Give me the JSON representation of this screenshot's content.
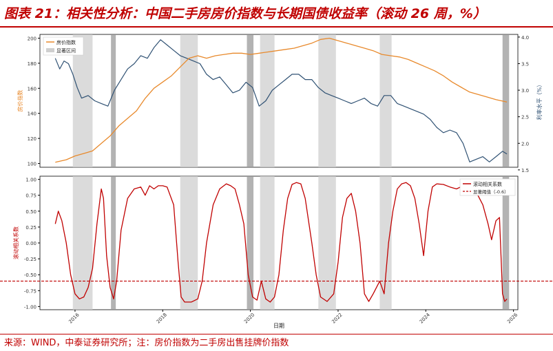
{
  "header": {
    "title": "图表 21：相关性分析：中国二手房房价指数与长期国债收益率（滚动 26 周，%）"
  },
  "footer": {
    "source": "来源：WIND，中泰证券研究所；注：房价指数为二手房出售挂牌价指数"
  },
  "colors": {
    "accent": "#c00000",
    "house_price": "#e8892b",
    "rate": "#2f5173",
    "correlation": "#c00000",
    "bear_shade": "#bdbdbd"
  },
  "chart_data": [
    {
      "type": "line",
      "panel": "top",
      "ylabel_left": "房价指数",
      "ylabel_right": "利率水平（%）",
      "ylim_left": [
        97,
        203
      ],
      "ylim_right": [
        1.55,
        4.05
      ],
      "xlim": [
        2015.2,
        2026.1
      ],
      "yticks_left": [
        "100",
        "120",
        "140",
        "160",
        "180",
        "200"
      ],
      "yticks_right": [
        "1.5",
        "2.0",
        "2.5",
        "3.0",
        "3.5",
        "4.0"
      ],
      "legend": [
        "房价指数",
        "显著区间"
      ],
      "legend_position": "top-left",
      "series": [
        {
          "name": "房价指数",
          "axis": "left",
          "x": [
            2015.55,
            2015.8,
            2016.0,
            2016.2,
            2016.4,
            2016.6,
            2016.8,
            2017.0,
            2017.2,
            2017.4,
            2017.6,
            2017.8,
            2018.0,
            2018.2,
            2018.4,
            2018.6,
            2018.8,
            2019.0,
            2019.2,
            2019.4,
            2019.6,
            2019.8,
            2020.0,
            2020.2,
            2020.4,
            2020.6,
            2020.8,
            2021.0,
            2021.2,
            2021.4,
            2021.6,
            2021.8,
            2022.0,
            2022.2,
            2022.4,
            2022.6,
            2022.8,
            2023.0,
            2023.2,
            2023.4,
            2023.6,
            2023.8,
            2024.0,
            2024.2,
            2024.4,
            2024.6,
            2024.8,
            2025.0,
            2025.2,
            2025.4,
            2025.6,
            2025.85
          ],
          "y": [
            101,
            103,
            106,
            108,
            110,
            116,
            122,
            130,
            136,
            142,
            152,
            160,
            165,
            170,
            177,
            184,
            186,
            184,
            186,
            187,
            188,
            188,
            187,
            188,
            189,
            190,
            191,
            192,
            194,
            196,
            199,
            200,
            198,
            196,
            194,
            192,
            190,
            187,
            186,
            185,
            183,
            180,
            177,
            174,
            170,
            165,
            161,
            157,
            155,
            153,
            151,
            149
          ]
        },
        {
          "name": "利率水平",
          "axis": "right",
          "x": [
            2015.55,
            2015.65,
            2015.75,
            2015.85,
            2015.95,
            2016.05,
            2016.15,
            2016.3,
            2016.45,
            2016.6,
            2016.75,
            2016.9,
            2017.05,
            2017.2,
            2017.35,
            2017.5,
            2017.65,
            2017.8,
            2017.95,
            2018.1,
            2018.25,
            2018.4,
            2018.55,
            2018.7,
            2018.85,
            2019.0,
            2019.15,
            2019.3,
            2019.45,
            2019.6,
            2019.75,
            2019.9,
            2020.05,
            2020.2,
            2020.35,
            2020.5,
            2020.65,
            2020.8,
            2020.95,
            2021.1,
            2021.25,
            2021.4,
            2021.55,
            2021.7,
            2021.85,
            2022.0,
            2022.15,
            2022.3,
            2022.45,
            2022.6,
            2022.75,
            2022.9,
            2023.05,
            2023.2,
            2023.35,
            2023.5,
            2023.65,
            2023.8,
            2023.95,
            2024.1,
            2024.25,
            2024.4,
            2024.55,
            2024.7,
            2024.85,
            2025.0,
            2025.15,
            2025.3,
            2025.45,
            2025.6,
            2025.75,
            2025.85
          ],
          "y": [
            3.6,
            3.4,
            3.55,
            3.5,
            3.3,
            3.05,
            2.85,
            2.9,
            2.8,
            2.75,
            2.7,
            3.0,
            3.2,
            3.4,
            3.5,
            3.65,
            3.6,
            3.8,
            3.95,
            3.85,
            3.75,
            3.65,
            3.6,
            3.55,
            3.5,
            3.3,
            3.2,
            3.25,
            3.1,
            2.95,
            3.0,
            3.15,
            3.05,
            2.7,
            2.8,
            3.0,
            3.1,
            3.2,
            3.3,
            3.3,
            3.2,
            3.2,
            3.05,
            2.95,
            2.9,
            2.85,
            2.8,
            2.75,
            2.8,
            2.85,
            2.75,
            2.7,
            2.9,
            2.9,
            2.75,
            2.7,
            2.65,
            2.6,
            2.55,
            2.45,
            2.3,
            2.2,
            2.25,
            2.2,
            2.0,
            1.65,
            1.7,
            1.75,
            1.65,
            1.75,
            1.85,
            1.8
          ]
        }
      ],
      "shaded_periods": [
        [
          2015.95,
          2016.4
        ],
        [
          2016.82,
          2016.93
        ],
        [
          2018.4,
          2018.8
        ],
        [
          2019.92,
          2020.07
        ],
        [
          2020.22,
          2020.55
        ],
        [
          2021.55,
          2021.95
        ],
        [
          2022.95,
          2023.22
        ],
        [
          2025.75,
          2025.9
        ]
      ]
    },
    {
      "type": "line",
      "panel": "bottom",
      "xlabel": "日期",
      "ylabel": "滚动相关系数",
      "ylim": [
        -1.05,
        1.05
      ],
      "xlim": [
        2015.2,
        2026.1
      ],
      "yticks": [
        "-1.00",
        "-0.75",
        "-0.50",
        "-0.25",
        "0.00",
        "0.25",
        "0.50",
        "0.75",
        "1.00"
      ],
      "xticks": [
        "2016",
        "2018",
        "2020",
        "2022",
        "2024",
        "2026"
      ],
      "legend": [
        "滚动相关系数",
        "显著阈值（-0.6）"
      ],
      "legend_position": "top-right",
      "threshold": -0.6,
      "series": [
        {
          "name": "滚动相关系数",
          "x": [
            2015.55,
            2015.62,
            2015.7,
            2015.8,
            2015.9,
            2016.0,
            2016.1,
            2016.2,
            2016.3,
            2016.4,
            2016.5,
            2016.6,
            2016.65,
            2016.72,
            2016.8,
            2016.88,
            2016.95,
            2017.05,
            2017.2,
            2017.35,
            2017.5,
            2017.6,
            2017.7,
            2017.8,
            2017.9,
            2018.0,
            2018.1,
            2018.25,
            2018.35,
            2018.42,
            2018.5,
            2018.65,
            2018.8,
            2018.9,
            2019.0,
            2019.15,
            2019.3,
            2019.45,
            2019.55,
            2019.65,
            2019.75,
            2019.85,
            2019.95,
            2020.05,
            2020.15,
            2020.25,
            2020.35,
            2020.45,
            2020.55,
            2020.65,
            2020.75,
            2020.85,
            2020.95,
            2021.05,
            2021.15,
            2021.25,
            2021.4,
            2021.5,
            2021.6,
            2021.75,
            2021.9,
            2022.0,
            2022.1,
            2022.2,
            2022.3,
            2022.4,
            2022.5,
            2022.6,
            2022.7,
            2022.8,
            2022.95,
            2023.05,
            2023.15,
            2023.25,
            2023.35,
            2023.45,
            2023.55,
            2023.65,
            2023.75,
            2023.85,
            2023.95,
            2024.05,
            2024.15,
            2024.25,
            2024.4,
            2024.55,
            2024.7,
            2024.85,
            2025.0,
            2025.15,
            2025.3,
            2025.42,
            2025.5,
            2025.6,
            2025.68,
            2025.75,
            2025.8,
            2025.85
          ],
          "y": [
            0.3,
            0.5,
            0.35,
            0.0,
            -0.5,
            -0.8,
            -0.88,
            -0.85,
            -0.7,
            -0.4,
            0.3,
            0.85,
            0.7,
            -0.2,
            -0.7,
            -0.88,
            -0.6,
            0.2,
            0.7,
            0.85,
            0.88,
            0.75,
            0.9,
            0.85,
            0.9,
            0.9,
            0.88,
            0.6,
            -0.3,
            -0.85,
            -0.93,
            -0.93,
            -0.88,
            -0.6,
            0.0,
            0.6,
            0.85,
            0.93,
            0.9,
            0.85,
            0.6,
            0.3,
            -0.5,
            -0.85,
            -0.9,
            -0.6,
            -0.88,
            -0.93,
            -0.85,
            -0.5,
            0.2,
            0.7,
            0.92,
            0.95,
            0.93,
            0.7,
            0.0,
            -0.5,
            -0.85,
            -0.92,
            -0.8,
            -0.3,
            0.4,
            0.7,
            0.78,
            0.5,
            0.0,
            -0.8,
            -0.92,
            -0.8,
            -0.6,
            -0.8,
            0.0,
            0.5,
            0.85,
            0.93,
            0.95,
            0.9,
            0.7,
            0.3,
            -0.2,
            0.5,
            0.88,
            0.93,
            0.92,
            0.88,
            0.85,
            0.9,
            0.87,
            0.8,
            0.6,
            0.3,
            0.05,
            0.35,
            0.4,
            -0.8,
            -0.92,
            -0.88
          ]
        }
      ],
      "shaded_periods": [
        [
          2015.95,
          2016.4
        ],
        [
          2016.82,
          2016.93
        ],
        [
          2018.4,
          2018.8
        ],
        [
          2019.92,
          2020.07
        ],
        [
          2020.22,
          2020.55
        ],
        [
          2021.55,
          2021.95
        ],
        [
          2022.95,
          2023.22
        ],
        [
          2025.75,
          2025.9
        ]
      ]
    }
  ]
}
